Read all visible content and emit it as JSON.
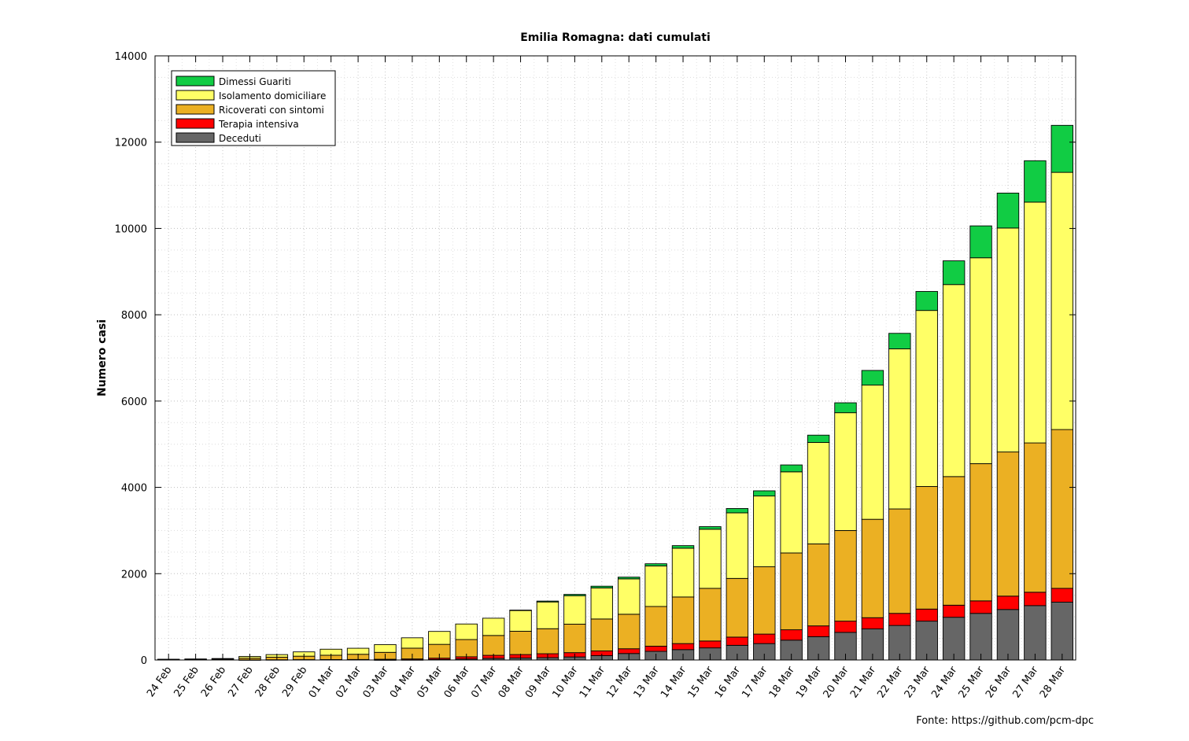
{
  "chart_data": {
    "type": "bar",
    "stacked": true,
    "title": "Emilia Romagna: dati cumulati",
    "xlabel": "",
    "ylabel": "Numero casi",
    "ylim": [
      0,
      14000
    ],
    "yticks": [
      0,
      2000,
      4000,
      6000,
      8000,
      10000,
      12000,
      14000
    ],
    "grid": true,
    "legend_position": "top-left",
    "source": "Fonte:  https://github.com/pcm-dpc",
    "categories": [
      "24 Feb",
      "25 Feb",
      "26 Feb",
      "27 Feb",
      "28 Feb",
      "29 Feb",
      "01 Mar",
      "02 Mar",
      "03 Mar",
      "04 Mar",
      "05 Mar",
      "06 Mar",
      "07 Mar",
      "08 Mar",
      "09 Mar",
      "10 Mar",
      "11 Mar",
      "12 Mar",
      "13 Mar",
      "14 Mar",
      "15 Mar",
      "16 Mar",
      "17 Mar",
      "18 Mar",
      "19 Mar",
      "20 Mar",
      "21 Mar",
      "22 Mar",
      "23 Mar",
      "24 Mar",
      "25 Mar",
      "26 Mar",
      "27 Mar",
      "28 Mar"
    ],
    "series": [
      {
        "name": "Deceduti",
        "color": "#666666",
        "values": [
          0,
          0,
          0,
          0,
          0,
          0,
          0,
          0,
          2,
          4,
          12,
          24,
          38,
          46,
          55,
          70,
          100,
          150,
          200,
          240,
          280,
          340,
          380,
          460,
          540,
          640,
          720,
          800,
          900,
          990,
          1080,
          1170,
          1260,
          1340
        ]
      },
      {
        "name": "Terapia intensiva",
        "color": "#ff0000",
        "values": [
          0,
          0,
          0,
          2,
          5,
          8,
          10,
          12,
          15,
          20,
          30,
          50,
          70,
          80,
          90,
          100,
          110,
          110,
          120,
          140,
          160,
          190,
          220,
          240,
          250,
          260,
          260,
          280,
          280,
          280,
          290,
          310,
          310,
          320
        ]
      },
      {
        "name": "Ricoverati con sintomi",
        "color": "#ebb023",
        "values": [
          8,
          10,
          20,
          40,
          60,
          80,
          100,
          120,
          160,
          250,
          320,
          400,
          460,
          540,
          580,
          660,
          740,
          800,
          920,
          1080,
          1220,
          1360,
          1560,
          1780,
          1900,
          2100,
          2280,
          2420,
          2840,
          2980,
          3180,
          3340,
          3460,
          3680
        ]
      },
      {
        "name": "Isolamento domiciliare",
        "color": "#ffff66",
        "values": [
          10,
          14,
          14,
          40,
          60,
          100,
          140,
          140,
          180,
          240,
          300,
          360,
          400,
          480,
          620,
          660,
          720,
          820,
          940,
          1130,
          1370,
          1520,
          1640,
          1880,
          2350,
          2730,
          3110,
          3710,
          4080,
          4450,
          4770,
          5190,
          5580,
          5960
        ]
      },
      {
        "name": "Dimessi Guariti",
        "color": "#11cc44",
        "values": [
          0,
          0,
          0,
          0,
          0,
          0,
          0,
          0,
          0,
          0,
          0,
          0,
          0,
          10,
          20,
          30,
          40,
          40,
          50,
          60,
          60,
          100,
          120,
          160,
          170,
          230,
          340,
          360,
          440,
          550,
          740,
          810,
          960,
          1090
        ]
      }
    ],
    "legend_order": [
      "Dimessi Guariti",
      "Isolamento domiciliare",
      "Ricoverati con sintomi",
      "Terapia intensiva",
      "Deceduti"
    ]
  }
}
